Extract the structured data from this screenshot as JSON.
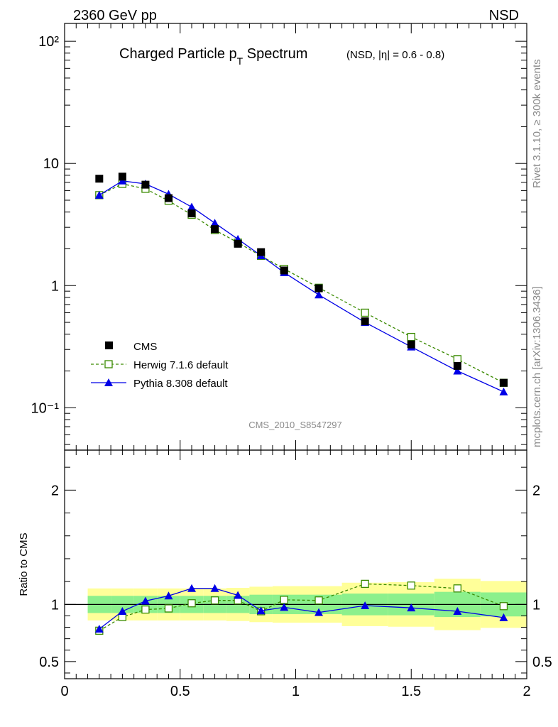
{
  "header": {
    "left": "2360 GeV pp",
    "right": "NSD"
  },
  "side_labels": {
    "rivet": "Rivet 3.1.10, ≥ 300k events",
    "site": "mcplots.cern.ch [arXiv:1306.3436]"
  },
  "chart_data": [
    {
      "type": "scatter",
      "title": "Charged Particle p",
      "title_sub": "T",
      "title_tail": " Spectrum",
      "title_small": "(NSD, |η| = 0.6 - 0.8)",
      "analysis_ref": "CMS_2010_S8547297",
      "xlabel": "",
      "ylabel": "",
      "xlim": [
        0,
        2
      ],
      "ylim": [
        0.045,
        140
      ],
      "yscale": "log",
      "ytick_labels": [
        "10⁻¹",
        "1",
        "10",
        "10²"
      ],
      "legend_position": "lower-left",
      "series": [
        {
          "name": "CMS",
          "color": "#000000",
          "marker": "filled-square",
          "x": [
            0.15,
            0.25,
            0.35,
            0.45,
            0.55,
            0.65,
            0.75,
            0.85,
            0.95,
            1.1,
            1.3,
            1.5,
            1.7,
            1.9
          ],
          "y": [
            7.5,
            7.8,
            6.7,
            5.2,
            3.9,
            2.9,
            2.2,
            1.88,
            1.33,
            0.95,
            0.51,
            0.33,
            0.22,
            0.16
          ]
        },
        {
          "name": "Herwig 7.1.6 default",
          "color": "#3a8a00",
          "marker": "open-square",
          "line": "dashed",
          "x": [
            0.15,
            0.25,
            0.35,
            0.45,
            0.55,
            0.65,
            0.75,
            0.85,
            0.95,
            1.1,
            1.3,
            1.5,
            1.7,
            1.9
          ],
          "y": [
            5.5,
            6.8,
            6.2,
            4.95,
            3.8,
            2.85,
            2.25,
            1.75,
            1.37,
            0.96,
            0.6,
            0.38,
            0.25,
            0.16
          ]
        },
        {
          "name": "Pythia 8.308 default",
          "color": "#0000e6",
          "marker": "filled-triangle",
          "line": "solid",
          "x": [
            0.15,
            0.25,
            0.35,
            0.45,
            0.55,
            0.65,
            0.75,
            0.85,
            0.95,
            1.1,
            1.3,
            1.5,
            1.7,
            1.9
          ],
          "y": [
            5.5,
            7.2,
            6.8,
            5.6,
            4.4,
            3.25,
            2.4,
            1.76,
            1.28,
            0.84,
            0.5,
            0.315,
            0.2,
            0.135
          ]
        }
      ]
    },
    {
      "type": "line",
      "title": "",
      "xlabel": "",
      "ylabel": "Ratio to CMS",
      "xlim": [
        0,
        2
      ],
      "ylim": [
        0.35,
        2.35
      ],
      "xtick_labels": [
        "0",
        "0.5",
        "1",
        "1.5",
        "2"
      ],
      "ytick_labels": [
        "0.5",
        "1",
        "2"
      ],
      "reference_line": 1,
      "bands": {
        "edges": [
          0.1,
          0.2,
          0.3,
          0.4,
          0.5,
          0.6,
          0.7,
          0.8,
          0.9,
          1.0,
          1.2,
          1.4,
          1.6,
          1.8,
          2.0
        ],
        "inner_color": "#8cf08c",
        "outer_color": "#ffff99",
        "inner_lo": [
          0.925,
          0.925,
          0.925,
          0.925,
          0.925,
          0.925,
          0.925,
          0.915,
          0.915,
          0.915,
          0.905,
          0.905,
          0.89,
          0.895
        ],
        "inner_hi": [
          1.075,
          1.075,
          1.075,
          1.075,
          1.075,
          1.075,
          1.075,
          1.085,
          1.085,
          1.085,
          1.095,
          1.095,
          1.11,
          1.105
        ],
        "outer_lo": [
          0.86,
          0.86,
          0.86,
          0.86,
          0.86,
          0.86,
          0.855,
          0.845,
          0.84,
          0.84,
          0.81,
          0.805,
          0.775,
          0.795
        ],
        "outer_hi": [
          1.14,
          1.14,
          1.14,
          1.14,
          1.14,
          1.14,
          1.145,
          1.155,
          1.16,
          1.16,
          1.19,
          1.195,
          1.225,
          1.205
        ]
      },
      "series": [
        {
          "name": "Herwig 7.1.6 default",
          "color": "#3a8a00",
          "marker": "open-square",
          "line": "dashed",
          "x": [
            0.15,
            0.25,
            0.35,
            0.45,
            0.55,
            0.65,
            0.75,
            0.85,
            0.95,
            1.1,
            1.3,
            1.5,
            1.7,
            1.9
          ],
          "y": [
            0.77,
            0.89,
            0.955,
            0.965,
            1.01,
            1.035,
            1.035,
            0.94,
            1.04,
            1.035,
            1.18,
            1.165,
            1.14,
            0.985
          ]
        },
        {
          "name": "Pythia 8.308 default",
          "color": "#0000e6",
          "marker": "filled-triangle",
          "line": "solid",
          "x": [
            0.15,
            0.25,
            0.35,
            0.45,
            0.55,
            0.65,
            0.75,
            0.85,
            0.95,
            1.1,
            1.3,
            1.5,
            1.7,
            1.9
          ],
          "y": [
            0.785,
            0.94,
            1.03,
            1.075,
            1.14,
            1.14,
            1.08,
            0.945,
            0.975,
            0.93,
            0.99,
            0.97,
            0.94,
            0.885
          ]
        }
      ]
    }
  ]
}
